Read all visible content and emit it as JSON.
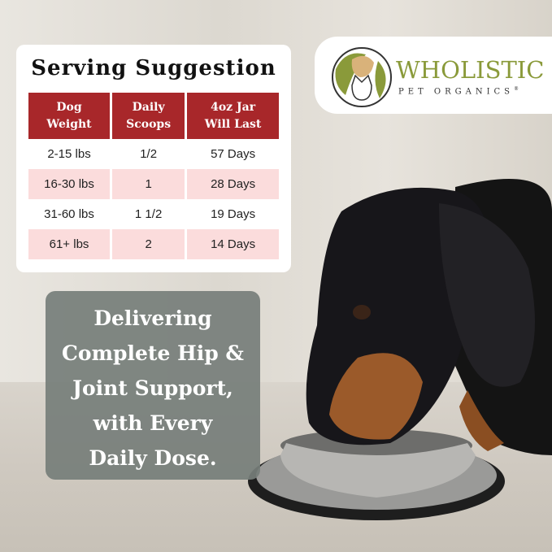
{
  "serving": {
    "title": "Serving Suggestion",
    "headers": [
      [
        "Dog",
        "Weight"
      ],
      [
        "Daily",
        "Scoops"
      ],
      [
        "4oz Jar",
        "Will Last"
      ]
    ],
    "rows": [
      [
        "2-15 lbs",
        "1/2",
        "57 Days"
      ],
      [
        "16-30 lbs",
        "1",
        "28 Days"
      ],
      [
        "31-60 lbs",
        "1 1/2",
        "19 Days"
      ],
      [
        "61+ lbs",
        "2",
        "14 Days"
      ]
    ]
  },
  "logo": {
    "brand": "WHOLISTIC",
    "sub": "PET ORGANICS",
    "registered": "®"
  },
  "tagline": [
    "Delivering",
    "Complete Hip &",
    "Joint Support,",
    "with Every",
    "Daily Dose."
  ],
  "colors": {
    "header": "#a8272a",
    "stripe": "#fbdcdc",
    "brand_green": "#8a9a3a",
    "tagline_box": "#767e7a"
  }
}
